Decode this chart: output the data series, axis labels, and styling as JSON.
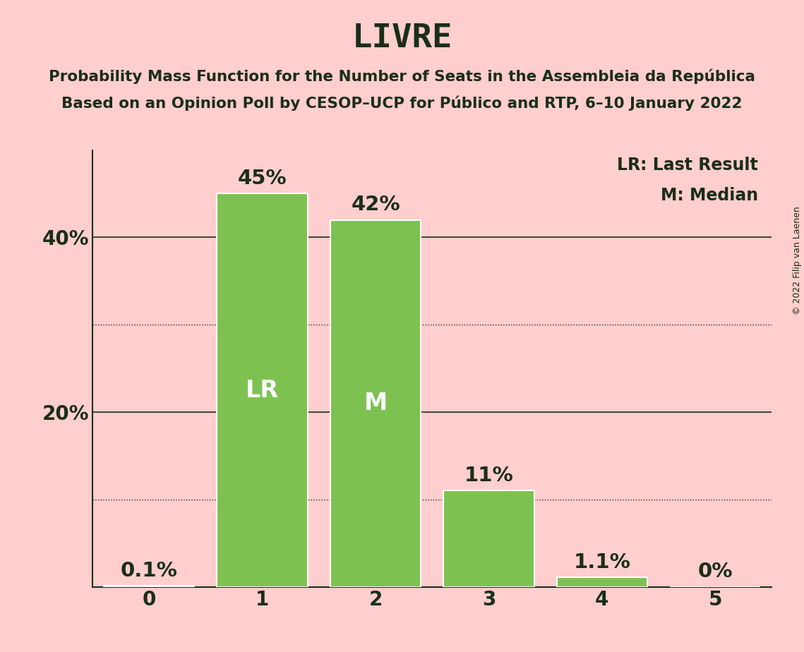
{
  "title": "LIVRE",
  "subtitle_line1": "Probability Mass Function for the Number of Seats in the Assembleia da República",
  "subtitle_line2": "Based on an Opinion Poll by CESOP–UCP for Público and RTP, 6–10 January 2022",
  "copyright": "© 2022 Filip van Laenen",
  "categories": [
    0,
    1,
    2,
    3,
    4,
    5
  ],
  "values": [
    0.001,
    0.45,
    0.42,
    0.11,
    0.011,
    0.0
  ],
  "labels": [
    "0.1%",
    "45%",
    "42%",
    "11%",
    "1.1%",
    "0%"
  ],
  "bar_color": "#7DC251",
  "bar_edge_color": "#FFFFFF",
  "background_color": "#FFCECE",
  "text_color": "#1A2E1A",
  "lr_bar": 1,
  "m_bar": 2,
  "lr_label": "LR",
  "m_label": "M",
  "legend_lr": "LR: Last Result",
  "legend_m": "M: Median",
  "yticks": [
    0.0,
    0.2,
    0.4
  ],
  "ytick_labels": [
    "",
    "20%",
    "40%"
  ],
  "solid_lines": [
    0.2,
    0.4
  ],
  "dotted_lines": [
    0.1,
    0.3
  ],
  "ylim": [
    0,
    0.5
  ],
  "title_fontsize": 34,
  "subtitle_fontsize": 15.5,
  "label_fontsize": 20,
  "bar_label_fontsize": 21,
  "inner_label_fontsize": 24,
  "legend_fontsize": 17,
  "axis_label_fontsize": 20,
  "copyright_fontsize": 9
}
